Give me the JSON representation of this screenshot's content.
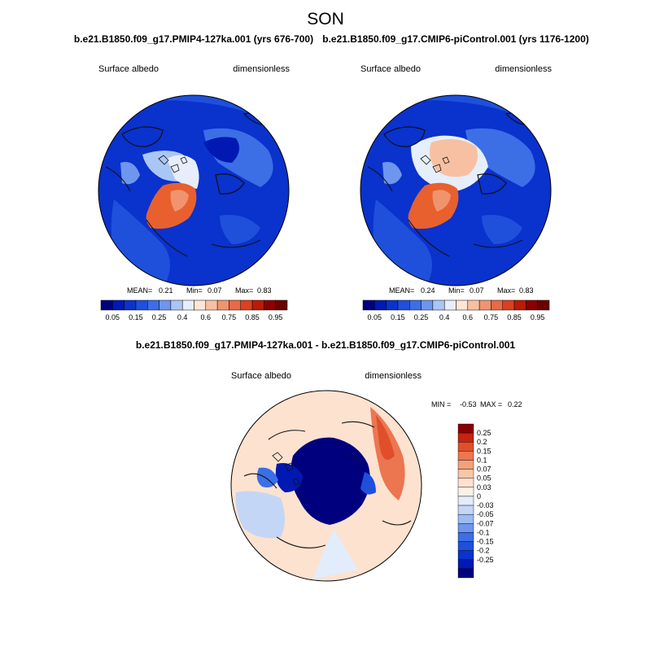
{
  "figure": {
    "season_title": "SON"
  },
  "colors": {
    "abs_scale": [
      "#00007f",
      "#0019b3",
      "#0a32cc",
      "#1e50dc",
      "#3c6ee6",
      "#6e96ee",
      "#aac6f4",
      "#e6eefb",
      "#fde6d6",
      "#f8c0a2",
      "#f09470",
      "#e86a46",
      "#d84220",
      "#b81c08",
      "#8a0000",
      "#6a0000"
    ],
    "diff_scale": [
      "#00007f",
      "#0019b3",
      "#0a32cc",
      "#1e50dc",
      "#3c6ee6",
      "#6e96ee",
      "#9cbcf2",
      "#c4d6f6",
      "#e2ecfb",
      "#fdf0e6",
      "#fde2cf",
      "#f9c7a8",
      "#f4a07b",
      "#ec7650",
      "#e04f2a",
      "#c42410",
      "#8a0000"
    ],
    "coast": "#111111",
    "frame": "#000000"
  },
  "chart_data": [
    {
      "type": "heatmap",
      "id": "panel-pmip4",
      "title": "b.e21.B1850.f09_g17.PMIP4-127ka.001 (yrs 676-700)",
      "left_label": "Surface albedo",
      "right_label": "dimensionless",
      "stats": {
        "mean_label": "MEAN=",
        "mean": "0.21",
        "min_label": "Min=",
        "min": "0.07",
        "max_label": "Max=",
        "max": "0.83"
      },
      "colorbar": {
        "orientation": "horizontal",
        "ticks": [
          "0.05",
          "0.15",
          "0.25",
          "0.4",
          "0.6",
          "0.75",
          "0.85",
          "0.95"
        ]
      }
    },
    {
      "type": "heatmap",
      "id": "panel-piControl",
      "title": "b.e21.B1850.f09_g17.CMIP6-piControl.001 (yrs 1176-1200)",
      "left_label": "Surface albedo",
      "right_label": "dimensionless",
      "stats": {
        "mean_label": "MEAN=",
        "mean": "0.24",
        "min_label": "Min=",
        "min": "0.07",
        "max_label": "Max=",
        "max": "0.83"
      },
      "colorbar": {
        "orientation": "horizontal",
        "ticks": [
          "0.05",
          "0.15",
          "0.25",
          "0.4",
          "0.6",
          "0.75",
          "0.85",
          "0.95"
        ]
      }
    },
    {
      "type": "heatmap",
      "id": "panel-diff",
      "title": "b.e21.B1850.f09_g17.PMIP4-127ka.001 - b.e21.B1850.f09_g17.CMIP6-piControl.001",
      "left_label": "Surface albedo",
      "right_label": "dimensionless",
      "stats": {
        "min_label": "MIN =",
        "min": "-0.53",
        "max_label": "MAX =",
        "max": "0.22"
      },
      "colorbar": {
        "orientation": "vertical",
        "ticks": [
          "0.25",
          "0.2",
          "0.15",
          "0.1",
          "0.07",
          "0.05",
          "0.03",
          "0",
          "-0.03",
          "-0.05",
          "-0.07",
          "-0.1",
          "-0.15",
          "-0.2",
          "-0.25"
        ]
      }
    }
  ]
}
